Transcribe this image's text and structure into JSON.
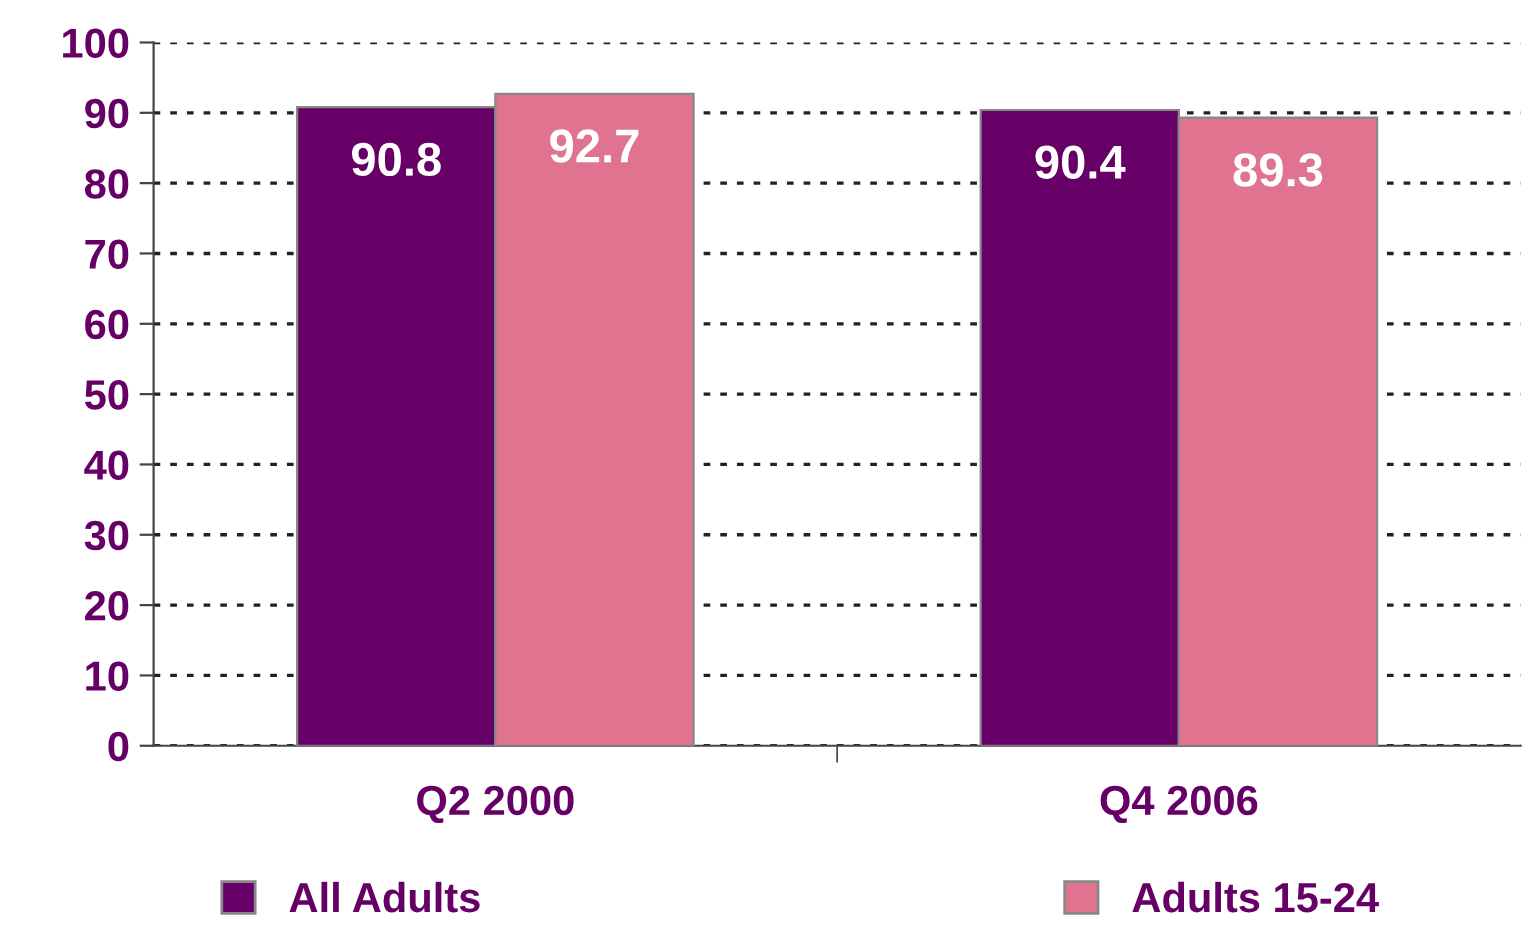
{
  "chart_data": {
    "type": "bar",
    "categories": [
      "Q2 2000",
      "Q4 2006"
    ],
    "series": [
      {
        "name": "All Adults",
        "color": "#660066",
        "values": [
          90.8,
          90.4
        ]
      },
      {
        "name": "Adults 15-24",
        "color": "#e07490",
        "values": [
          92.7,
          89.3
        ]
      }
    ],
    "ylim": [
      0,
      100
    ],
    "yticks": [
      0,
      10,
      20,
      30,
      40,
      50,
      60,
      70,
      80,
      90,
      100
    ],
    "grid": "y",
    "legend": "bottom left",
    "data_labels": true
  }
}
